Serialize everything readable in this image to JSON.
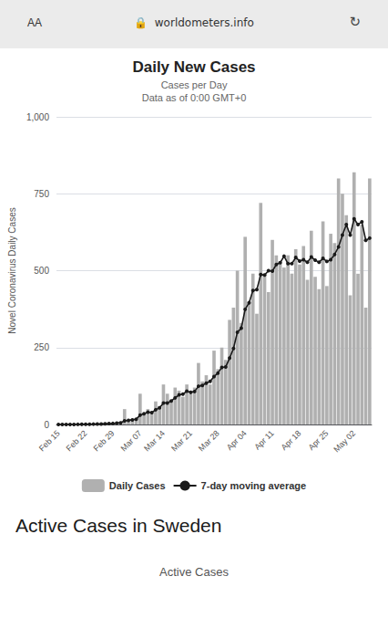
{
  "chart_data": {
    "type": "bar",
    "title": "Daily New Cases",
    "subtitle": [
      "Cases per Day",
      "Data as of 0:00 GMT+0"
    ],
    "ylabel": "Novel Coronavirus Daily Cases",
    "annotations": [
      "AA",
      "🔒  worldometers.info",
      "↻",
      "Active Cases in Sweden",
      "Active Cases"
    ],
    "categories": [
      "Feb 15",
      null,
      null,
      null,
      null,
      null,
      null,
      "Feb 22",
      null,
      null,
      null,
      null,
      null,
      null,
      "Feb 29",
      null,
      null,
      null,
      null,
      null,
      null,
      "Mar 07",
      null,
      null,
      null,
      null,
      null,
      "Mar 14",
      null,
      null,
      null,
      null,
      null,
      null,
      "Mar 21",
      null,
      null,
      null,
      null,
      null,
      null,
      "Mar 28",
      null,
      null,
      null,
      null,
      null,
      null,
      "Apr 04",
      null,
      null,
      null,
      null,
      null,
      null,
      "Apr 11",
      null,
      null,
      null,
      null,
      null,
      null,
      "Apr 18",
      null,
      null,
      null,
      null,
      null,
      null,
      "Apr 25",
      null,
      null,
      null,
      null,
      null,
      null,
      "May 02",
      null,
      null,
      null,
      null
    ],
    "series": [
      {
        "name": "Daily Cases",
        "type": "bar",
        "color": "#b0b0b0",
        "values": [
          0,
          0,
          0,
          1,
          0,
          1,
          1,
          2,
          1,
          2,
          3,
          2,
          4,
          5,
          6,
          8,
          10,
          50,
          12,
          15,
          20,
          100,
          35,
          50,
          40,
          75,
          60,
          130,
          100,
          80,
          120,
          110,
          90,
          130,
          100,
          120,
          200,
          140,
          160,
          130,
          240,
          180,
          250,
          210,
          340,
          380,
          500,
          330,
          610,
          400,
          490,
          360,
          720,
          490,
          430,
          600,
          550,
          530,
          510,
          550,
          490,
          570,
          520,
          580,
          470,
          630,
          480,
          440,
          660,
          450,
          620,
          590,
          800,
          750,
          680,
          420,
          820,
          490,
          650,
          380,
          800
        ]
      },
      {
        "name": "7-day moving average",
        "type": "line",
        "color": "#1a1a1a",
        "marker": "circle",
        "values": [
          0,
          0,
          0,
          0.25,
          0.2,
          0.333333,
          0.428571,
          0.714286,
          0.857143,
          1.142857,
          1.428571,
          1.714286,
          2.142857,
          2.714286,
          3.285714,
          4.285714,
          5.428571,
          12.142857,
          13.571429,
          15.142857,
          17.285714,
          30.714286,
          34.571429,
          40.285714,
          38.857143,
          47.857143,
          54.285714,
          70,
          70,
          76.428571,
          86.428571,
          96.428571,
          98.571429,
          108.571429,
          104.285714,
          107.142857,
          124.285714,
          127.142857,
          134.285714,
          140,
          155.714286,
          167.142857,
          185.714286,
          187.142857,
          215.714286,
          247.142857,
          300,
          312.857143,
          374.285714,
          395.714286,
          435.714286,
          438.571429,
          487.142857,
          485.714286,
          500,
          498.571429,
          520,
          525.714286,
          547.142857,
          522.857143,
          522.857143,
          542.857143,
          531.428571,
          535.714286,
          527.142857,
          544.285714,
          534.285714,
          527.142857,
          540,
          530,
          535.714286,
          552.857143,
          577.142857,
          615.714286,
          650,
          615.714286,
          668.571429,
          650,
          658.571429,
          598.571429,
          605.714286
        ]
      }
    ],
    "ylim": [
      0,
      1000
    ],
    "yticks": [
      0,
      250,
      500,
      750,
      1000
    ],
    "grid": true,
    "legend": "bottom"
  }
}
